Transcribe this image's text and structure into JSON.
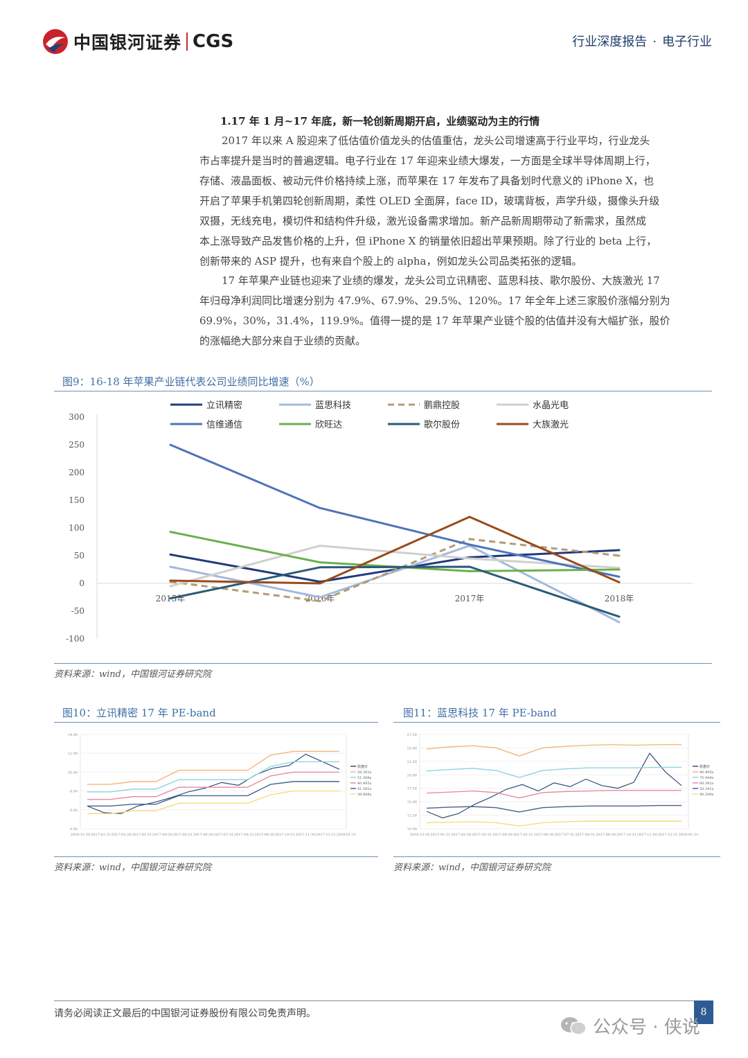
{
  "header": {
    "brand": "中国银河证券",
    "brand_en": "CGS",
    "report_type": "行业深度报告",
    "separator": "·",
    "industry": "电子行业"
  },
  "section": {
    "title": "1.17 年 1 月~17 年底，新一轮创新周期开启，业绩驱动为主的行情",
    "para1": [
      "2017 年以来 A 股迎来了低估值价值龙头的估值重估，龙头公司增速高于行业平均，行业龙头",
      "市占率提升是当时的普遍逻辑。电子行业在 17 年迎来业绩大爆发，一方面是全球半导体周期上行，",
      "存储、液晶面板、被动元件价格持续上涨，而苹果在 17 年发布了具备划时代意义的 iPhone X，也",
      "开启了苹果手机第四轮创新周期，柔性 OLED 全面屏，face ID，玻璃背板，声学升级，摄像头升级",
      "双摄，无线充电，模切件和结构件升级，激光设备需求增加。新产品新周期带动了新需求，虽然成",
      "本上涨导致产品发售价格的上升，但 iPhone X 的销量依旧超出苹果预期。除了行业的 beta 上行，",
      "创新带来的 ASP 提升，也有来自个股上的 alpha，例如龙头公司品类拓张的逻辑。"
    ],
    "para2": [
      "17 年苹果产业链也迎来了业绩的爆发，龙头公司立讯精密、蓝思科技、歌尔股份、大族激光 17",
      "年归母净利润同比增速分别为 47.9%、67.9%、29.5%、120%。17 年全年上述三家股价涨幅分别为",
      "69.9%，30%，31.4%，119.9%。值得一提的是 17 年苹果产业链个股的估值并没有大幅扩张，股价",
      "的涨幅绝大部分来自于业绩的贡献。"
    ]
  },
  "figure9": {
    "caption": "图9：16-18 年苹果产业链代表公司业绩同比增速（%）",
    "source": "资料来源：wind，中国银河证券研究院"
  },
  "figure10": {
    "caption": "图10：立讯精密 17 年 PE-band",
    "source": "资料来源：wind，中国银河证券研究院"
  },
  "figure11": {
    "caption": "图11：蓝思科技 17 年 PE-band",
    "source": "资料来源：wind，中国银河证券研究院"
  },
  "footer": {
    "disclaimer": "请务必阅读正文最后的中国银河证券股份有限公司免责声明。",
    "page": "8",
    "watermark": "公众号 · 侠说"
  },
  "chart_data": [
    {
      "type": "line",
      "categories": [
        "2015年",
        "2016年",
        "2017年",
        "2018年"
      ],
      "ylim": [
        -100,
        300
      ],
      "yticks": [
        300,
        250,
        200,
        150,
        100,
        50,
        0,
        -50,
        -100
      ],
      "grid": false,
      "legend_position": "top",
      "series": [
        {
          "name": "立讯精密",
          "color": "#1f3a7a",
          "dash": false,
          "values": [
            52,
            3,
            47,
            60
          ]
        },
        {
          "name": "蓝思科技",
          "color": "#a3b9dc",
          "dash": false,
          "values": [
            30,
            -25,
            68,
            -70
          ]
        },
        {
          "name": "鹏鼎控股",
          "color": "#b59a72",
          "dash": true,
          "values": [
            3,
            -32,
            80,
            50
          ]
        },
        {
          "name": "水晶光电",
          "color": "#cfcfcf",
          "dash": false,
          "values": [
            -5,
            68,
            45,
            28
          ]
        },
        {
          "name": "信维通信",
          "color": "#4d74b8",
          "dash": false,
          "values": [
            250,
            136,
            70,
            12
          ]
        },
        {
          "name": "欣旺达",
          "color": "#6ab04c",
          "dash": false,
          "values": [
            93,
            38,
            22,
            25
          ]
        },
        {
          "name": "歌尔股份",
          "color": "#2a5a78",
          "dash": false,
          "values": [
            -27,
            29,
            30,
            -60
          ]
        },
        {
          "name": "大族激光",
          "color": "#9a4a1c",
          "dash": false,
          "values": [
            5,
            0,
            120,
            2
          ]
        }
      ]
    },
    {
      "type": "line",
      "ylim": [
        4,
        14
      ],
      "yticks": [
        "14.00",
        "12.00",
        "10.00",
        "8.00",
        "6.00",
        "4.00"
      ],
      "xticks": [
        "2016-12-30",
        "2017-01-31",
        "2017-02-28",
        "2017-03-31",
        "2017-04-30",
        "2017-05-31",
        "2017-06-30",
        "2017-07-31",
        "2017-08-31",
        "2017-09-30",
        "2017-10-31",
        "2017-11-30",
        "2017-12-31",
        "2018-01-31"
      ],
      "legend_position": "right",
      "legend": [
        "收盘价",
        "58.302x",
        "51.398x",
        "40.495x",
        "41.592x",
        "38.688x"
      ],
      "series": [
        {
          "name": "收盘价",
          "color": "#2e4d7a",
          "values": [
            6.4,
            5.7,
            5.6,
            6.4,
            6.8,
            7.3,
            7.9,
            8.3,
            8.9,
            8.6,
            9.7,
            10.4,
            10.7,
            11.9,
            11.1,
            10.3
          ]
        },
        {
          "name": "58.302x",
          "color": "#f2b77a",
          "values": [
            8.7,
            8.7,
            9.0,
            9.0,
            10.2,
            10.2,
            10.2,
            10.2,
            11.8,
            12.2,
            12.2,
            12.2
          ]
        },
        {
          "name": "51.398x",
          "color": "#8ed3e0",
          "values": [
            7.9,
            7.9,
            8.2,
            8.2,
            9.2,
            9.2,
            9.2,
            9.2,
            10.6,
            11.1,
            11.1,
            11.1
          ]
        },
        {
          "name": "40.495x",
          "color": "#e88aa0",
          "values": [
            7.1,
            7.1,
            7.4,
            7.4,
            8.4,
            8.4,
            8.4,
            8.4,
            9.6,
            10.0,
            10.0,
            10.0
          ]
        },
        {
          "name": "41.592x",
          "color": "#46628a",
          "values": [
            6.4,
            6.4,
            6.6,
            6.6,
            7.5,
            7.5,
            7.5,
            7.5,
            8.7,
            9.0,
            9.0,
            9.0
          ]
        },
        {
          "name": "38.688x",
          "color": "#f5dd7a",
          "values": [
            5.6,
            5.6,
            5.9,
            5.9,
            6.7,
            6.7,
            6.7,
            6.7,
            7.6,
            8.0,
            8.0,
            8.0
          ]
        }
      ]
    },
    {
      "type": "line",
      "ylim": [
        10,
        27.5
      ],
      "yticks": [
        "27.50",
        "25.00",
        "22.50",
        "20.00",
        "17.50",
        "15.00",
        "12.50",
        "10.00"
      ],
      "xticks": [
        "2016-12-30",
        "2017-01-31",
        "2017-02-28",
        "2017-03-31",
        "2017-04-30",
        "2017-05-31",
        "2017-06-30",
        "2017-07-31",
        "2017-08-31",
        "2017-09-30",
        "2017-10-31",
        "2017-11-30",
        "2017-12-31",
        "2018-01-31"
      ],
      "legend_position": "right",
      "legend": [
        "收盘价",
        "90.495x",
        "75.444x",
        "60.392x",
        "50.341x",
        "40.290x"
      ],
      "series": [
        {
          "name": "收盘价",
          "color": "#2e4d7a",
          "values": [
            13.2,
            12.0,
            12.8,
            14.5,
            15.8,
            17.3,
            18.2,
            17.0,
            18.5,
            17.8,
            19.2,
            18.0,
            17.5,
            18.6,
            24.0,
            20.5,
            18.0
          ]
        },
        {
          "name": "90.495x",
          "color": "#f2b77a",
          "values": [
            24.8,
            25.2,
            25.4,
            25.0,
            23.5,
            25.0,
            25.3,
            25.5,
            25.6,
            25.5,
            25.6,
            25.6
          ]
        },
        {
          "name": "75.444x",
          "color": "#8ed3e0",
          "values": [
            20.7,
            21.0,
            21.2,
            20.8,
            19.5,
            20.8,
            21.1,
            21.3,
            21.3,
            21.3,
            21.4,
            21.4
          ]
        },
        {
          "name": "60.392x",
          "color": "#e88aa0",
          "values": [
            16.6,
            16.8,
            17.0,
            16.7,
            15.7,
            16.7,
            16.9,
            17.0,
            17.1,
            17.1,
            17.1,
            17.1
          ]
        },
        {
          "name": "50.341x",
          "color": "#46628a",
          "values": [
            13.8,
            14.0,
            14.1,
            13.9,
            13.1,
            13.9,
            14.1,
            14.2,
            14.2,
            14.2,
            14.3,
            14.3
          ]
        },
        {
          "name": "40.290x",
          "color": "#f5dd7a",
          "values": [
            11.1,
            11.2,
            11.3,
            11.1,
            10.5,
            11.1,
            11.3,
            11.4,
            11.4,
            11.4,
            11.4,
            11.4
          ]
        }
      ]
    }
  ]
}
